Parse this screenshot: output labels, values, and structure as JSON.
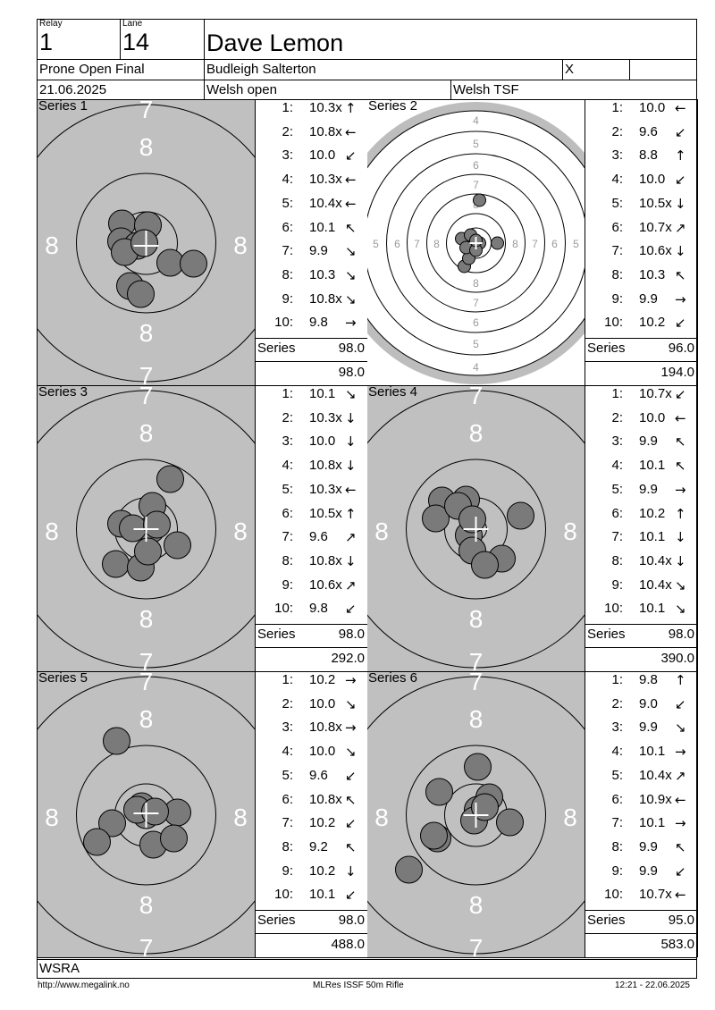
{
  "header": {
    "relay_label": "Relay",
    "relay": "1",
    "lane_label": "Lane",
    "lane": "14",
    "name": "Dave Lemon",
    "event": "Prone Open Final",
    "club": "Budleigh Salterton",
    "x_mark": "X",
    "date": "21.06.2025",
    "competition": "Welsh open",
    "range": "Welsh TSF"
  },
  "series_label": "Series",
  "series": [
    {
      "title": "Series 1",
      "target": "close",
      "shots": [
        {
          "n": "1:",
          "v": "10.3x",
          "arrow": "↑"
        },
        {
          "n": "2:",
          "v": "10.8x",
          "arrow": "←"
        },
        {
          "n": "3:",
          "v": "10.0",
          "arrow": "↙"
        },
        {
          "n": "4:",
          "v": "10.3x",
          "arrow": "←"
        },
        {
          "n": "5:",
          "v": "10.4x",
          "arrow": "←"
        },
        {
          "n": "6:",
          "v": "10.1",
          "arrow": "↖"
        },
        {
          "n": "7:",
          "v": "9.9",
          "arrow": "↘"
        },
        {
          "n": "8:",
          "v": "10.3",
          "arrow": "↘"
        },
        {
          "n": "9:",
          "v": "10.8x",
          "arrow": "↘"
        },
        {
          "n": "10:",
          "v": "9.8",
          "arrow": "→"
        }
      ],
      "series_total": "98.0",
      "cumulative": "98.0"
    },
    {
      "title": "Series 2",
      "target": "full",
      "shots": [
        {
          "n": "1:",
          "v": "10.0",
          "arrow": "←"
        },
        {
          "n": "2:",
          "v": "9.6",
          "arrow": "↙"
        },
        {
          "n": "3:",
          "v": "8.8",
          "arrow": "↑"
        },
        {
          "n": "4:",
          "v": "10.0",
          "arrow": "↙"
        },
        {
          "n": "5:",
          "v": "10.5x",
          "arrow": "↓"
        },
        {
          "n": "6:",
          "v": "10.7x",
          "arrow": "↗"
        },
        {
          "n": "7:",
          "v": "10.6x",
          "arrow": "↓"
        },
        {
          "n": "8:",
          "v": "10.3",
          "arrow": "↖"
        },
        {
          "n": "9:",
          "v": "9.9",
          "arrow": "→"
        },
        {
          "n": "10:",
          "v": "10.2",
          "arrow": "↙"
        }
      ],
      "series_total": "96.0",
      "cumulative": "194.0"
    },
    {
      "title": "Series 3",
      "target": "close",
      "shots": [
        {
          "n": "1:",
          "v": "10.1",
          "arrow": "↘"
        },
        {
          "n": "2:",
          "v": "10.3x",
          "arrow": "↓"
        },
        {
          "n": "3:",
          "v": "10.0",
          "arrow": "↓"
        },
        {
          "n": "4:",
          "v": "10.8x",
          "arrow": "↓"
        },
        {
          "n": "5:",
          "v": "10.3x",
          "arrow": "←"
        },
        {
          "n": "6:",
          "v": "10.5x",
          "arrow": "↑"
        },
        {
          "n": "7:",
          "v": "9.6",
          "arrow": "↗"
        },
        {
          "n": "8:",
          "v": "10.8x",
          "arrow": "↓"
        },
        {
          "n": "9:",
          "v": "10.6x",
          "arrow": "↗"
        },
        {
          "n": "10:",
          "v": "9.8",
          "arrow": "↙"
        }
      ],
      "series_total": "98.0",
      "cumulative": "292.0"
    },
    {
      "title": "Series 4",
      "target": "close",
      "shots": [
        {
          "n": "1:",
          "v": "10.7x",
          "arrow": "↙"
        },
        {
          "n": "2:",
          "v": "10.0",
          "arrow": "←"
        },
        {
          "n": "3:",
          "v": "9.9",
          "arrow": "↖"
        },
        {
          "n": "4:",
          "v": "10.1",
          "arrow": "↖"
        },
        {
          "n": "5:",
          "v": "9.9",
          "arrow": "→"
        },
        {
          "n": "6:",
          "v": "10.2",
          "arrow": "↑"
        },
        {
          "n": "7:",
          "v": "10.1",
          "arrow": "↓"
        },
        {
          "n": "8:",
          "v": "10.4x",
          "arrow": "↓"
        },
        {
          "n": "9:",
          "v": "10.4x",
          "arrow": "↘"
        },
        {
          "n": "10:",
          "v": "10.1",
          "arrow": "↘"
        }
      ],
      "series_total": "98.0",
      "cumulative": "390.0"
    },
    {
      "title": "Series 5",
      "target": "close",
      "shots": [
        {
          "n": "1:",
          "v": "10.2",
          "arrow": "→"
        },
        {
          "n": "2:",
          "v": "10.0",
          "arrow": "↘"
        },
        {
          "n": "3:",
          "v": "10.8x",
          "arrow": "→"
        },
        {
          "n": "4:",
          "v": "10.0",
          "arrow": "↘"
        },
        {
          "n": "5:",
          "v": "9.6",
          "arrow": "↙"
        },
        {
          "n": "6:",
          "v": "10.8x",
          "arrow": "↖"
        },
        {
          "n": "7:",
          "v": "10.2",
          "arrow": "↙"
        },
        {
          "n": "8:",
          "v": "9.2",
          "arrow": "↖"
        },
        {
          "n": "9:",
          "v": "10.2",
          "arrow": "↓"
        },
        {
          "n": "10:",
          "v": "10.1",
          "arrow": "↙"
        }
      ],
      "series_total": "98.0",
      "cumulative": "488.0"
    },
    {
      "title": "Series 6",
      "target": "close",
      "shots": [
        {
          "n": "1:",
          "v": "9.8",
          "arrow": "↑"
        },
        {
          "n": "2:",
          "v": "9.0",
          "arrow": "↙"
        },
        {
          "n": "3:",
          "v": "9.9",
          "arrow": "↘"
        },
        {
          "n": "4:",
          "v": "10.1",
          "arrow": "→"
        },
        {
          "n": "5:",
          "v": "10.4x",
          "arrow": "↗"
        },
        {
          "n": "6:",
          "v": "10.9x",
          "arrow": "←"
        },
        {
          "n": "7:",
          "v": "10.1",
          "arrow": "→"
        },
        {
          "n": "8:",
          "v": "9.9",
          "arrow": "↖"
        },
        {
          "n": "9:",
          "v": "9.9",
          "arrow": "↙"
        },
        {
          "n": "10:",
          "v": "10.7x",
          "arrow": "←"
        }
      ],
      "series_total": "95.0",
      "cumulative": "583.0"
    }
  ],
  "ring_labels_close": {
    "top": "7",
    "upper": "8",
    "left": "8",
    "right": "8",
    "lower": "8",
    "bottom": "7"
  },
  "ring_labels_full": [
    "4",
    "5",
    "6",
    "7",
    "8"
  ],
  "footer": {
    "org": "WSRA",
    "url": "http://www.megalink.no",
    "software": "MLRes ISSF 50m Rifle",
    "timestamp": "12:21 - 22.06.2025"
  },
  "colors": {
    "target_face": "#c0c0c0",
    "shot_fill": "#7a7a7a",
    "outer_ring": "#bdbdbd"
  }
}
